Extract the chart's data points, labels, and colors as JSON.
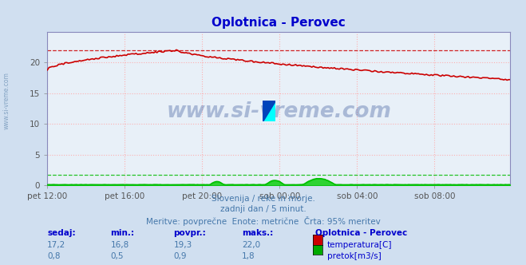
{
  "title": "Oplotnica - Perovec",
  "title_color": "#0000cc",
  "bg_color": "#d0dff0",
  "plot_bg_color": "#e8f0f8",
  "grid_color": "#ffaaaa",
  "grid_color_green": "#aaffaa",
  "xlabel_ticks": [
    "pet 12:00",
    "pet 16:00",
    "pet 20:00",
    "sob 00:00",
    "sob 04:00",
    "sob 08:00"
  ],
  "ylabel_ticks": [
    0,
    5,
    10,
    15,
    20
  ],
  "ylim": [
    0,
    25
  ],
  "xlim_max": 287,
  "temp_color": "#cc0000",
  "flow_color": "#00bb00",
  "flow_fill_color": "#00cc00",
  "temp_max_line": 22.0,
  "flow_max_line": 1.8,
  "watermark": "www.si-vreme.com",
  "watermark_color": "#1a3a8a",
  "watermark_alpha": 0.3,
  "subtitle1": "Slovenija / reke in morje.",
  "subtitle2": "zadnji dan / 5 minut.",
  "subtitle3": "Meritve: povprečne  Enote: metrične  Črta: 95% meritev",
  "subtitle_color": "#4477aa",
  "table_label_color": "#0000cc",
  "table_headers": [
    "sedaj:",
    "min.:",
    "povpr.:",
    "maks.:"
  ],
  "table_station": "Oplotnica - Perovec",
  "temp_row": [
    "17,2",
    "16,8",
    "19,3",
    "22,0"
  ],
  "flow_row": [
    "0,8",
    "0,5",
    "0,9",
    "1,8"
  ],
  "temp_label": "temperatura[C]",
  "flow_label": "pretok[m3/s]",
  "temp_rect_color": "#cc0000",
  "flow_rect_color": "#00aa00",
  "side_text_color": "#7799bb",
  "spine_color": "#8888bb",
  "tick_color": "#555555"
}
